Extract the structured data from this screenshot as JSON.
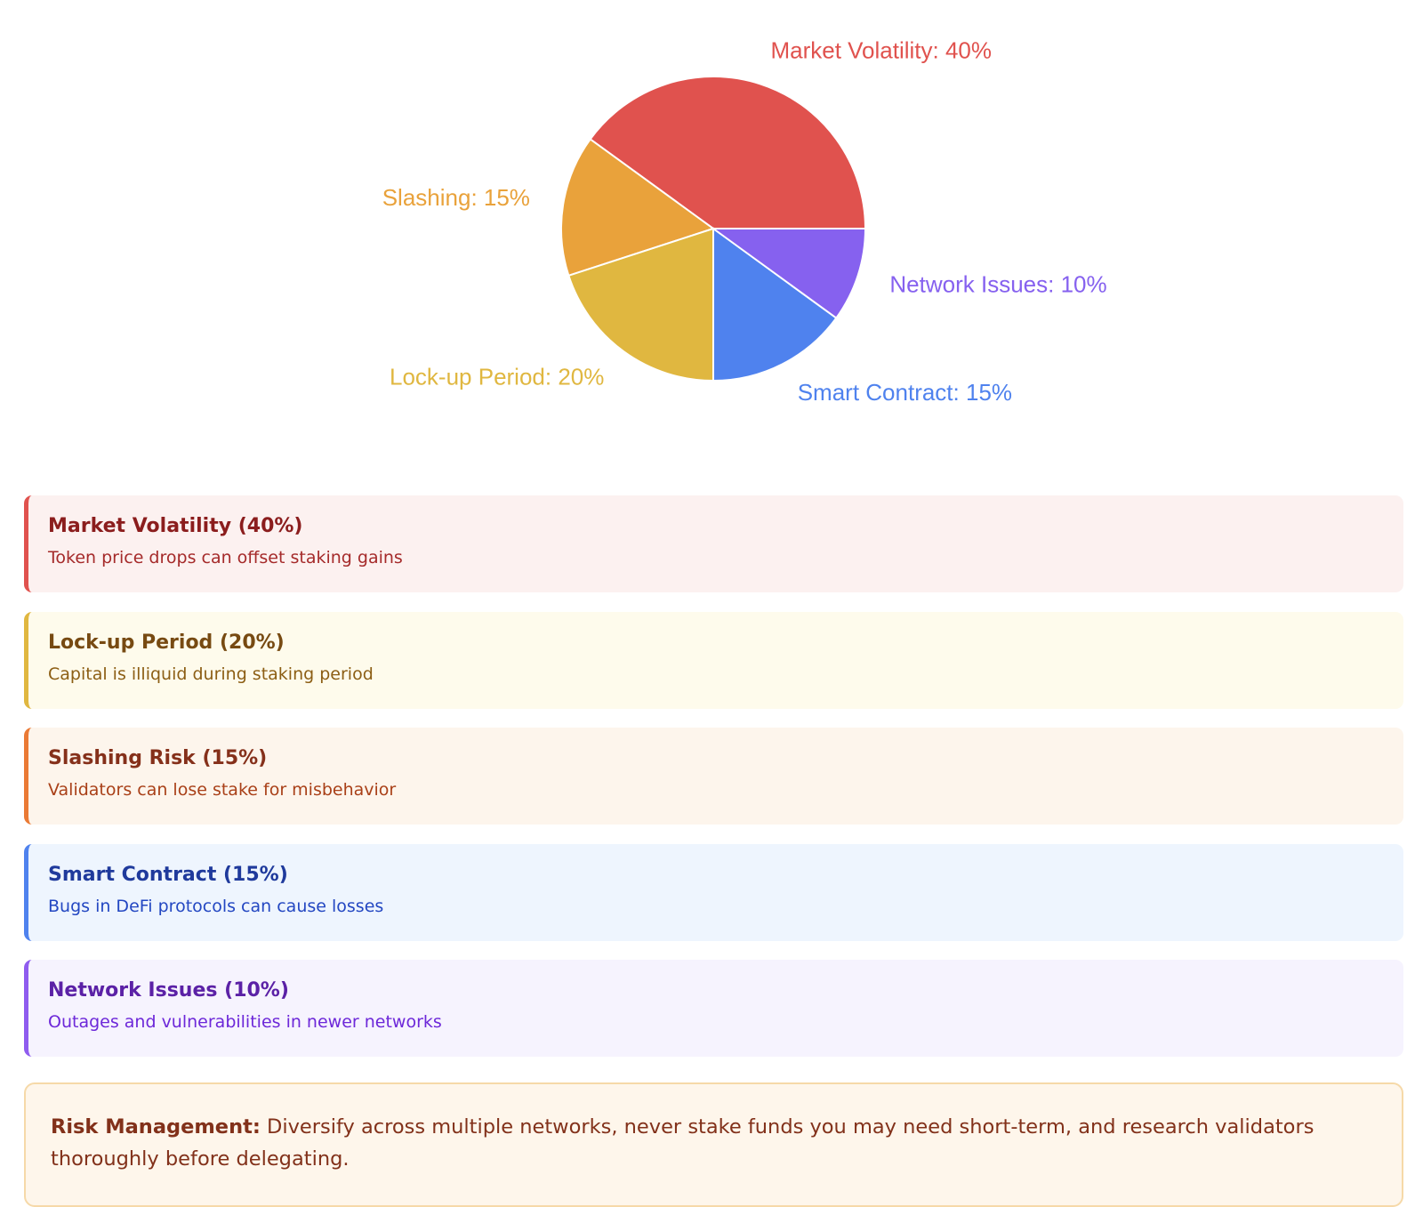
{
  "chart_data": {
    "type": "pie",
    "values": [
      40,
      15,
      20,
      15,
      10
    ],
    "value_labels": [
      "Market Volatility: 40%",
      "Slashing: 15%",
      "Lock-up Period: 20%",
      "Smart Contract: 15%",
      "Network Issues: 10%"
    ],
    "colors": [
      "#e0524e",
      "#e9a23b",
      "#e0b740",
      "#4f82ee",
      "#8661ef"
    ]
  },
  "cards": [
    {
      "title": "Market Volatility (40%)",
      "description": "Token price drops can offset staking gains"
    },
    {
      "title": "Lock-up Period (20%)",
      "description": "Capital is illiquid during staking period"
    },
    {
      "title": "Slashing Risk (15%)",
      "description": "Validators can lose stake for misbehavior"
    },
    {
      "title": "Smart Contract (15%)",
      "description": "Bugs in DeFi protocols can cause losses"
    },
    {
      "title": "Network Issues (10%)",
      "description": "Outages and vulnerabilities in newer networks"
    }
  ],
  "note": {
    "label": "Risk Management:",
    "text": "Diversify across multiple networks, never stake funds you may need short-term, and research validators thoroughly before delegating."
  }
}
